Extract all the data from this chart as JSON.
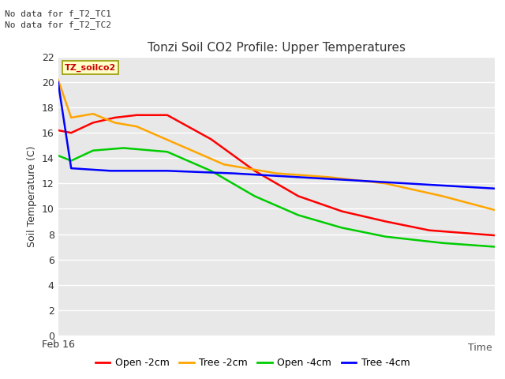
{
  "title": "Tonzi Soil CO2 Profile: Upper Temperatures",
  "ylabel": "Soil Temperature (C)",
  "xlabel": "Time",
  "note_lines": [
    "No data for f_T2_TC1",
    "No data for f_T2_TC2"
  ],
  "file_label": "TZ_soilco2",
  "ylim": [
    0,
    22
  ],
  "yticks": [
    0,
    2,
    4,
    6,
    8,
    10,
    12,
    14,
    16,
    18,
    20,
    22
  ],
  "xstart_label": "Feb 16",
  "series": {
    "open_2cm": {
      "label": "Open -2cm",
      "color": "#ff0000",
      "x": [
        0,
        0.03,
        0.08,
        0.13,
        0.18,
        0.25,
        0.35,
        0.45,
        0.55,
        0.65,
        0.75,
        0.85,
        1.0
      ],
      "y": [
        16.2,
        16.0,
        16.8,
        17.2,
        17.4,
        17.4,
        15.5,
        13.0,
        11.0,
        9.8,
        9.0,
        8.3,
        7.9
      ]
    },
    "tree_2cm": {
      "label": "Tree -2cm",
      "color": "#ffa500",
      "x": [
        0,
        0.03,
        0.08,
        0.13,
        0.18,
        0.28,
        0.38,
        0.5,
        0.62,
        0.75,
        0.88,
        1.0
      ],
      "y": [
        20.2,
        17.2,
        17.5,
        16.8,
        16.5,
        15.0,
        13.5,
        12.8,
        12.5,
        12.0,
        11.0,
        9.9
      ]
    },
    "open_4cm": {
      "label": "Open -4cm",
      "color": "#00cc00",
      "x": [
        0,
        0.03,
        0.08,
        0.15,
        0.25,
        0.35,
        0.45,
        0.55,
        0.65,
        0.75,
        0.88,
        1.0
      ],
      "y": [
        14.2,
        13.8,
        14.6,
        14.8,
        14.5,
        13.0,
        11.0,
        9.5,
        8.5,
        7.8,
        7.3,
        7.0
      ]
    },
    "tree_4cm": {
      "label": "Tree -4cm",
      "color": "#0000ff",
      "x": [
        0,
        0.03,
        0.12,
        0.25,
        0.4,
        0.55,
        0.7,
        0.85,
        1.0
      ],
      "y": [
        20.0,
        13.2,
        13.0,
        13.0,
        12.8,
        12.5,
        12.2,
        11.9,
        11.6
      ]
    }
  }
}
